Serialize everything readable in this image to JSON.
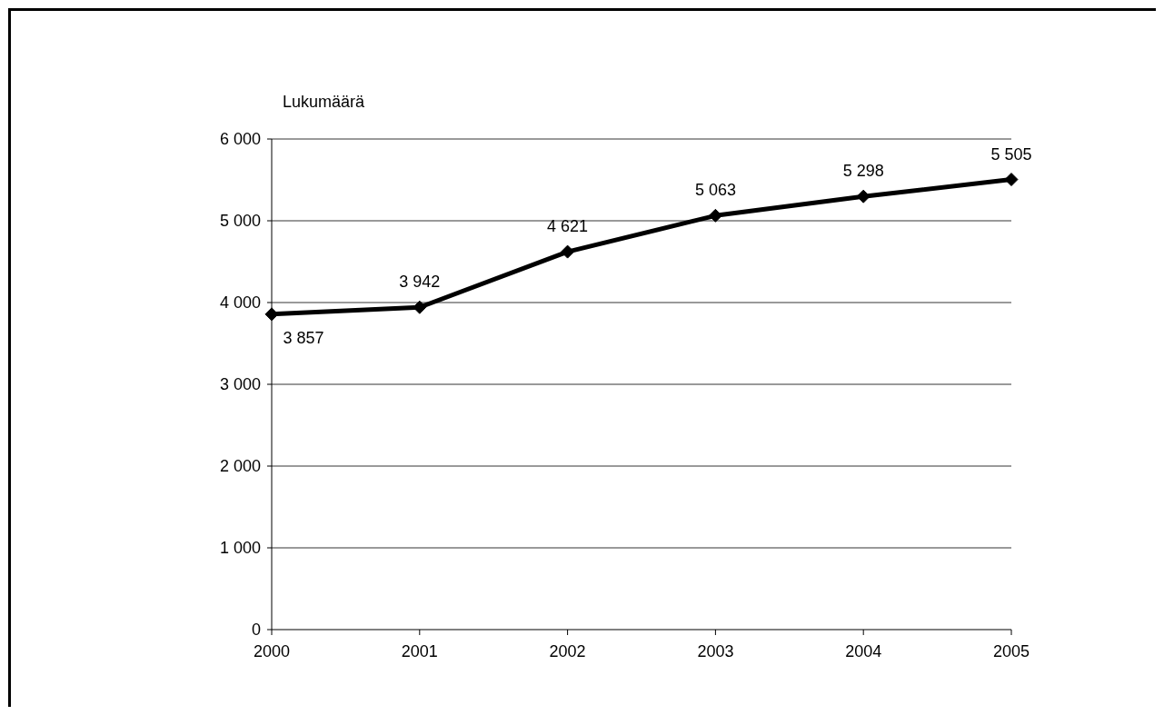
{
  "chart_data": {
    "type": "line",
    "ylabel": "Lukumäärä",
    "categories": [
      "2000",
      "2001",
      "2002",
      "2003",
      "2004",
      "2005"
    ],
    "series": [
      {
        "color": "#000000",
        "values": [
          3857,
          3942,
          4621,
          5063,
          5298,
          5505
        ]
      }
    ],
    "ylim": [
      0,
      6000
    ],
    "yticks": [
      {
        "value": 0,
        "label": "0"
      },
      {
        "value": 1000,
        "label": "1 000"
      },
      {
        "value": 2000,
        "label": "2 000"
      },
      {
        "value": 3000,
        "label": "3 000"
      },
      {
        "value": 4000,
        "label": "4 000"
      },
      {
        "value": 5000,
        "label": "5 000"
      },
      {
        "value": 6000,
        "label": "6 000"
      }
    ],
    "grid": "y",
    "marker": "diamond",
    "line_style": "solid",
    "value_labels": [
      "3 857",
      "3 942",
      "4 621",
      "5 063",
      "5 298",
      "5 505"
    ]
  }
}
